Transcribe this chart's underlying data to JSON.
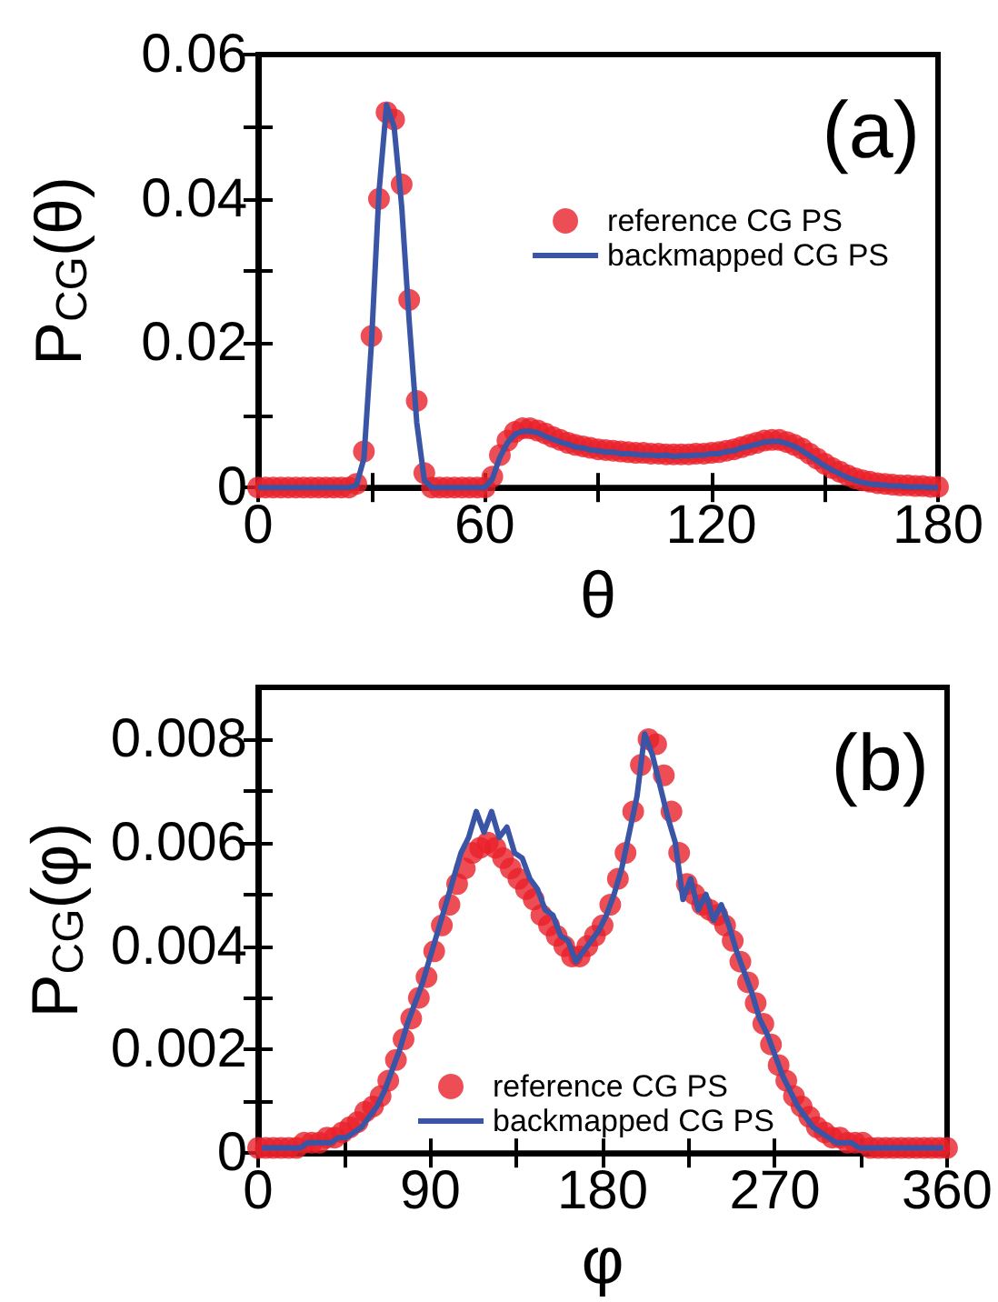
{
  "chart_data": [
    {
      "type": "line",
      "xlabel": "θ",
      "ylabel": "P$_{CG}$(θ)",
      "annotations": [
        "(a)"
      ],
      "legend": "top right",
      "xlim": [
        0,
        180
      ],
      "xticks": [
        0,
        {
          "value": 30,
          "label": null
        },
        60,
        {
          "value": 90,
          "label": null
        },
        120,
        {
          "value": 150,
          "label": null
        },
        180
      ],
      "ylim": [
        0,
        0.06
      ],
      "yticks": [
        0,
        {
          "value": 0.01,
          "label": null
        },
        0.02,
        {
          "value": 0.03,
          "label": null
        },
        0.04,
        {
          "value": 0.05,
          "label": null
        },
        0.06
      ],
      "series": [
        {
          "name": "reference CG PS",
          "type": "scatter",
          "marker": "circle",
          "color": "#e8202a",
          "x": [
            0,
            2,
            4,
            6,
            8,
            10,
            12,
            14,
            16,
            18,
            20,
            22,
            24,
            26,
            28,
            30,
            32,
            34,
            36,
            38,
            40,
            42,
            44,
            46,
            48,
            50,
            52,
            54,
            56,
            58,
            60,
            62,
            64,
            66,
            68,
            70,
            72,
            74,
            76,
            78,
            80,
            82,
            84,
            86,
            88,
            90,
            92,
            94,
            96,
            98,
            100,
            102,
            104,
            106,
            108,
            110,
            112,
            114,
            116,
            118,
            120,
            122,
            124,
            126,
            128,
            130,
            132,
            134,
            136,
            138,
            140,
            142,
            144,
            146,
            148,
            150,
            152,
            154,
            156,
            158,
            160,
            162,
            164,
            166,
            168,
            170,
            172,
            174,
            176,
            178,
            180
          ],
          "values": [
            0,
            0,
            0,
            0,
            0,
            0,
            0,
            0,
            0,
            0,
            0,
            0,
            0,
            0.0005,
            0.005,
            0.021,
            0.04,
            0.052,
            0.051,
            0.042,
            0.026,
            0.012,
            0.002,
            0,
            0,
            0,
            0,
            0,
            0,
            0,
            0,
            0.0015,
            0.0045,
            0.0065,
            0.0077,
            0.0082,
            0.0082,
            0.0079,
            0.0075,
            0.007,
            0.0066,
            0.0062,
            0.0059,
            0.0057,
            0.0055,
            0.0053,
            0.0052,
            0.0051,
            0.005,
            0.0049,
            0.0048,
            0.0048,
            0.0047,
            0.0047,
            0.0046,
            0.0046,
            0.0046,
            0.0046,
            0.0047,
            0.0047,
            0.0048,
            0.0049,
            0.0051,
            0.0053,
            0.0056,
            0.0059,
            0.0062,
            0.0065,
            0.0066,
            0.0066,
            0.0063,
            0.0059,
            0.0054,
            0.0047,
            0.004,
            0.0033,
            0.0027,
            0.0022,
            0.0017,
            0.0013,
            0.001,
            0.0008,
            0.0006,
            0.0005,
            0.0004,
            0.0003,
            0.0003,
            0.0002,
            0.0002,
            0.0001,
            0.0001
          ]
        },
        {
          "name": "backmapped CG PS",
          "type": "line",
          "marker": "none",
          "color": "#3a55a5",
          "x": [
            0,
            2,
            4,
            6,
            8,
            10,
            12,
            14,
            16,
            18,
            20,
            22,
            24,
            26,
            28,
            30,
            32,
            34,
            36,
            38,
            40,
            42,
            44,
            46,
            48,
            50,
            52,
            54,
            56,
            58,
            60,
            62,
            64,
            66,
            68,
            70,
            72,
            74,
            76,
            78,
            80,
            82,
            84,
            86,
            88,
            90,
            92,
            94,
            96,
            98,
            100,
            102,
            104,
            106,
            108,
            110,
            112,
            114,
            116,
            118,
            120,
            122,
            124,
            126,
            128,
            130,
            132,
            134,
            136,
            138,
            140,
            142,
            144,
            146,
            148,
            150,
            152,
            154,
            156,
            158,
            160,
            162,
            164,
            166,
            168,
            170,
            172,
            174,
            176,
            178,
            180
          ],
          "values": [
            0,
            0,
            0,
            0,
            0,
            0,
            0,
            0,
            0,
            0,
            0,
            0,
            0,
            0.0003,
            0.004,
            0.02,
            0.041,
            0.053,
            0.05,
            0.039,
            0.023,
            0.009,
            0.001,
            0,
            0,
            0,
            0,
            0,
            0,
            0,
            0,
            0.0012,
            0.0042,
            0.0062,
            0.0074,
            0.0078,
            0.0078,
            0.0076,
            0.0071,
            0.0067,
            0.0063,
            0.006,
            0.0056,
            0.0055,
            0.0052,
            0.0051,
            0.0049,
            0.0049,
            0.0047,
            0.0047,
            0.0046,
            0.0045,
            0.0045,
            0.0044,
            0.0045,
            0.0043,
            0.0044,
            0.0044,
            0.0045,
            0.0045,
            0.0047,
            0.0047,
            0.005,
            0.0051,
            0.0055,
            0.0057,
            0.006,
            0.0063,
            0.0064,
            0.0064,
            0.0061,
            0.0057,
            0.0051,
            0.0044,
            0.0037,
            0.003,
            0.0024,
            0.0019,
            0.0014,
            0.001,
            0.0007,
            0.0005,
            0.0004,
            0.0003,
            0.0002,
            0.0002,
            0.0001,
            0.0001,
            0.0001,
            0,
            0
          ]
        }
      ]
    },
    {
      "type": "line",
      "xlabel": "φ",
      "ylabel": "P$_{CG}$(φ)",
      "annotations": [
        "(b)"
      ],
      "legend": "bottom",
      "xlim": [
        0,
        360
      ],
      "xticks": [
        0,
        {
          "value": 45,
          "label": null
        },
        90,
        {
          "value": 135,
          "label": null
        },
        180,
        {
          "value": 225,
          "label": null
        },
        270,
        {
          "value": 315,
          "label": null
        },
        360
      ],
      "ylim": [
        0,
        0.009
      ],
      "yticks": [
        0,
        {
          "value": 0.001,
          "label": null
        },
        0.002,
        {
          "value": 0.003,
          "label": null
        },
        0.004,
        {
          "value": 0.005,
          "label": null
        },
        0.006,
        {
          "value": 0.007,
          "label": null
        },
        0.008
      ],
      "series": [
        {
          "name": "reference CG PS",
          "type": "scatter",
          "marker": "circle",
          "color": "#e8202a",
          "x": [
            0,
            4,
            8,
            12,
            16,
            20,
            24,
            28,
            32,
            36,
            40,
            44,
            48,
            52,
            56,
            60,
            64,
            68,
            72,
            76,
            80,
            84,
            88,
            92,
            96,
            100,
            104,
            108,
            112,
            116,
            120,
            124,
            128,
            132,
            136,
            140,
            144,
            148,
            152,
            156,
            160,
            164,
            168,
            172,
            176,
            180,
            184,
            188,
            192,
            196,
            200,
            204,
            208,
            212,
            216,
            220,
            224,
            228,
            232,
            236,
            240,
            244,
            248,
            252,
            256,
            260,
            264,
            268,
            272,
            276,
            280,
            284,
            288,
            292,
            296,
            300,
            304,
            308,
            312,
            316,
            320,
            324,
            328,
            332,
            336,
            340,
            344,
            348,
            352,
            356,
            360
          ],
          "values": [
            0.0001,
            0.0001,
            0.0001,
            0.0001,
            0.0001,
            0.0001,
            0.0002,
            0.0002,
            0.0002,
            0.0003,
            0.0003,
            0.0004,
            0.0005,
            0.0006,
            0.0008,
            0.0009,
            0.0011,
            0.0014,
            0.0018,
            0.0022,
            0.0026,
            0.003,
            0.0034,
            0.0039,
            0.0044,
            0.0048,
            0.0052,
            0.0055,
            0.0058,
            0.0059,
            0.006,
            0.0059,
            0.0057,
            0.0055,
            0.0053,
            0.0051,
            0.0049,
            0.0046,
            0.0044,
            0.0042,
            0.004,
            0.0038,
            0.0038,
            0.004,
            0.0042,
            0.0044,
            0.0048,
            0.0053,
            0.0058,
            0.0066,
            0.0075,
            0.008,
            0.0079,
            0.0073,
            0.0066,
            0.0058,
            0.0052,
            0.005,
            0.0048,
            0.0047,
            0.0046,
            0.0044,
            0.0041,
            0.0037,
            0.0033,
            0.0029,
            0.0025,
            0.0021,
            0.0017,
            0.0014,
            0.0011,
            0.0009,
            0.0007,
            0.0005,
            0.0004,
            0.0003,
            0.0003,
            0.0002,
            0.0002,
            0.0002,
            0.0001,
            0.0001,
            0.0001,
            0.0001,
            0.0001,
            0.0001,
            0.0001,
            0.0001,
            0.0001,
            0.0001,
            0.0001
          ]
        },
        {
          "name": "backmapped CG PS",
          "type": "line",
          "marker": "none",
          "color": "#3a55a5",
          "x": [
            2,
            6,
            10,
            14,
            18,
            22,
            26,
            30,
            34,
            38,
            42,
            46,
            50,
            54,
            58,
            62,
            66,
            70,
            74,
            78,
            82,
            86,
            90,
            94,
            98,
            102,
            106,
            110,
            114,
            118,
            122,
            126,
            130,
            134,
            138,
            142,
            146,
            150,
            154,
            158,
            162,
            166,
            170,
            174,
            178,
            182,
            186,
            190,
            194,
            198,
            202,
            206,
            210,
            214,
            218,
            222,
            226,
            230,
            234,
            238,
            242,
            246,
            250,
            254,
            258,
            262,
            266,
            270,
            274,
            278,
            282,
            286,
            290,
            294,
            298,
            302,
            306,
            310,
            314,
            318,
            322,
            326,
            330,
            334,
            338,
            342,
            346,
            350,
            354,
            358
          ],
          "values": [
            0.0001,
            0.0001,
            0.0001,
            0.0001,
            0.0001,
            0.0001,
            0.0002,
            0.0002,
            0.0002,
            0.0002,
            0.0003,
            0.0003,
            0.0004,
            0.0005,
            0.0007,
            0.0009,
            0.0012,
            0.0016,
            0.002,
            0.0025,
            0.0029,
            0.0033,
            0.0038,
            0.0043,
            0.0048,
            0.0053,
            0.0058,
            0.0061,
            0.0066,
            0.0062,
            0.0066,
            0.0061,
            0.0063,
            0.0058,
            0.0057,
            0.0053,
            0.0051,
            0.0047,
            0.0046,
            0.0042,
            0.0041,
            0.0037,
            0.0039,
            0.0041,
            0.0043,
            0.0046,
            0.005,
            0.0055,
            0.0062,
            0.0069,
            0.0081,
            0.0077,
            0.0071,
            0.0065,
            0.006,
            0.0049,
            0.0053,
            0.0047,
            0.005,
            0.0045,
            0.0048,
            0.0044,
            0.0039,
            0.0035,
            0.0031,
            0.0026,
            0.0023,
            0.0019,
            0.0015,
            0.0012,
            0.0009,
            0.0007,
            0.0005,
            0.0004,
            0.0003,
            0.0002,
            0.0002,
            0.0002,
            0.0001,
            0.0001,
            0.0001,
            0.0001,
            0.0001,
            0.0001,
            0.0001,
            0.0001,
            0.0001,
            0.0001,
            0.0001,
            0.0001
          ]
        }
      ]
    }
  ]
}
